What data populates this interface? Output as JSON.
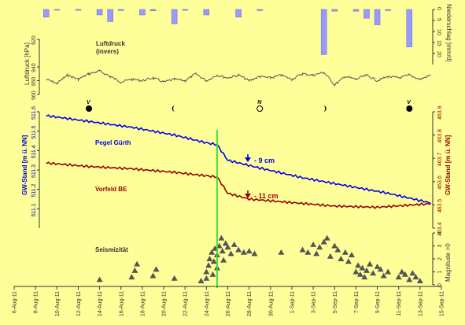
{
  "chart_data": {
    "type": "line",
    "x_axis": {
      "tick_labels": [
        "6-Aug-11",
        "8-Aug-11",
        "10-Aug-11",
        "12-Aug-11",
        "14-Aug-11",
        "16-Aug-11",
        "18-Aug-11",
        "20-Aug-11",
        "22-Aug-11",
        "24-Aug-11",
        "26-Aug-11",
        "28-Aug-11",
        "30-Aug-11",
        "1-Sep-11",
        "3-Sep-11",
        "5-Sep-11",
        "7-Sep-11",
        "9-Sep-11",
        "11-Sep-11",
        "13-Sep-11",
        "15-Sep-11"
      ],
      "range": [
        "2011-08-06",
        "2011-09-15"
      ]
    },
    "event_line_date": "2011-08-25",
    "precipitation": {
      "ylabel": "Niederschlag [mm/d]",
      "ylim": [
        0,
        25
      ],
      "inverted": true,
      "ticks": [
        0,
        5,
        10,
        15,
        20
      ],
      "color": "#9999ff",
      "bars": [
        {
          "date": "2011-08-09",
          "value": 3.5
        },
        {
          "date": "2011-08-10",
          "value": 0.3
        },
        {
          "date": "2011-08-12",
          "value": 0.4
        },
        {
          "date": "2011-08-14",
          "value": 2.5
        },
        {
          "date": "2011-08-15",
          "value": 5.5
        },
        {
          "date": "2011-08-16",
          "value": 0.5
        },
        {
          "date": "2011-08-18",
          "value": 2.5
        },
        {
          "date": "2011-08-19",
          "value": 0.6
        },
        {
          "date": "2011-08-21",
          "value": 6.5
        },
        {
          "date": "2011-08-22",
          "value": 0.4
        },
        {
          "date": "2011-08-24",
          "value": 2.5
        },
        {
          "date": "2011-08-27",
          "value": 3.5
        },
        {
          "date": "2011-08-29",
          "value": 0.5
        },
        {
          "date": "2011-09-04",
          "value": 20.5
        },
        {
          "date": "2011-09-05",
          "value": 0.8
        },
        {
          "date": "2011-09-07",
          "value": 0.8
        },
        {
          "date": "2011-09-08",
          "value": 4.0
        },
        {
          "date": "2011-09-09",
          "value": 7.0
        },
        {
          "date": "2011-09-10",
          "value": 0.5
        },
        {
          "date": "2011-09-12",
          "value": 17.0
        }
      ]
    },
    "pressure": {
      "label": [
        "Luftdruck",
        "(invers)"
      ],
      "ylabel": "Luftdruck [hPa]",
      "ylim": [
        920,
        960
      ],
      "inverted": true,
      "ticks": [
        920,
        940,
        950,
        960
      ],
      "color": "#555555",
      "points": [
        {
          "date": "2011-08-09",
          "value": 949
        },
        {
          "date": "2011-08-10",
          "value": 952
        },
        {
          "date": "2011-08-11",
          "value": 946
        },
        {
          "date": "2011-08-12",
          "value": 949
        },
        {
          "date": "2011-08-13",
          "value": 945
        },
        {
          "date": "2011-08-14",
          "value": 943
        },
        {
          "date": "2011-08-15",
          "value": 947
        },
        {
          "date": "2011-08-16",
          "value": 951
        },
        {
          "date": "2011-08-17",
          "value": 949
        },
        {
          "date": "2011-08-18",
          "value": 950
        },
        {
          "date": "2011-08-19",
          "value": 948
        },
        {
          "date": "2011-08-20",
          "value": 951
        },
        {
          "date": "2011-08-21",
          "value": 949
        },
        {
          "date": "2011-08-22",
          "value": 950
        },
        {
          "date": "2011-08-23",
          "value": 945
        },
        {
          "date": "2011-08-24",
          "value": 950
        },
        {
          "date": "2011-08-25",
          "value": 946
        },
        {
          "date": "2011-08-26",
          "value": 948
        },
        {
          "date": "2011-08-27",
          "value": 946
        },
        {
          "date": "2011-08-28",
          "value": 950
        },
        {
          "date": "2011-08-29",
          "value": 947
        },
        {
          "date": "2011-08-30",
          "value": 948
        },
        {
          "date": "2011-08-31",
          "value": 946
        },
        {
          "date": "2011-09-01",
          "value": 949
        },
        {
          "date": "2011-09-02",
          "value": 945
        },
        {
          "date": "2011-09-03",
          "value": 946
        },
        {
          "date": "2011-09-04",
          "value": 944
        },
        {
          "date": "2011-09-05",
          "value": 953
        },
        {
          "date": "2011-09-06",
          "value": 947
        },
        {
          "date": "2011-09-07",
          "value": 949
        },
        {
          "date": "2011-09-08",
          "value": 946
        },
        {
          "date": "2011-09-09",
          "value": 950
        },
        {
          "date": "2011-09-10",
          "value": 947
        },
        {
          "date": "2011-09-11",
          "value": 948
        },
        {
          "date": "2011-09-12",
          "value": 946
        },
        {
          "date": "2011-09-13",
          "value": 949
        },
        {
          "date": "2011-09-14",
          "value": 946
        }
      ]
    },
    "moon_phases": [
      {
        "date": "2011-08-13",
        "symbol": "full",
        "letter": "V"
      },
      {
        "date": "2011-08-21",
        "symbol": "last-quarter",
        "letter": ""
      },
      {
        "date": "2011-08-29",
        "symbol": "new",
        "letter": "N"
      },
      {
        "date": "2011-09-04",
        "symbol": "first-quarter",
        "letter": ""
      },
      {
        "date": "2011-09-12",
        "symbol": "full",
        "letter": "V"
      }
    ],
    "groundwater": {
      "left_axis": {
        "label": "GW-Stand  [m ü. NN]",
        "ylim": [
          511.0,
          511.6
        ],
        "ticks": [
          511.1,
          511.2,
          511.3,
          511.4,
          511.5,
          511.6
        ],
        "color": "#0000cc"
      },
      "right_axis": {
        "label": "GW-Stand  [m ü. NN]",
        "ylim": [
          463.4,
          463.9
        ],
        "ticks": [
          463.4,
          463.5,
          463.6,
          463.7,
          463.8,
          463.9
        ],
        "color": "#990000"
      },
      "series": [
        {
          "name": "Pegel Gürth",
          "axis": "left",
          "color": "#0000ee",
          "annotation": "- 9 cm",
          "points": [
            {
              "date": "2011-08-09",
              "value": 511.58
            },
            {
              "date": "2011-08-13",
              "value": 511.55
            },
            {
              "date": "2011-08-17",
              "value": 511.52
            },
            {
              "date": "2011-08-21",
              "value": 511.48
            },
            {
              "date": "2011-08-24",
              "value": 511.44
            },
            {
              "date": "2011-08-25",
              "value": 511.43
            },
            {
              "date": "2011-08-26",
              "value": 511.35
            },
            {
              "date": "2011-08-29",
              "value": 511.31
            },
            {
              "date": "2011-09-02",
              "value": 511.26
            },
            {
              "date": "2011-09-06",
              "value": 511.22
            },
            {
              "date": "2011-09-10",
              "value": 511.18
            },
            {
              "date": "2011-09-14",
              "value": 511.13
            }
          ]
        },
        {
          "name": "Vorfeld BE",
          "axis": "right",
          "color": "#990000",
          "annotation": "- 11 cm",
          "points": [
            {
              "date": "2011-08-09",
              "value": 463.68
            },
            {
              "date": "2011-08-13",
              "value": 463.665
            },
            {
              "date": "2011-08-17",
              "value": 463.655
            },
            {
              "date": "2011-08-21",
              "value": 463.64
            },
            {
              "date": "2011-08-24",
              "value": 463.625
            },
            {
              "date": "2011-08-25",
              "value": 463.62
            },
            {
              "date": "2011-08-26",
              "value": 463.55
            },
            {
              "date": "2011-08-28",
              "value": 463.525
            },
            {
              "date": "2011-09-01",
              "value": 463.51
            },
            {
              "date": "2011-09-05",
              "value": 463.495
            },
            {
              "date": "2011-09-09",
              "value": 463.49
            },
            {
              "date": "2011-09-14",
              "value": 463.505
            }
          ]
        }
      ]
    },
    "seismicity": {
      "label": "Seismizität",
      "ylabel": "Magnitude >0",
      "ylim": [
        0,
        4
      ],
      "ticks": [
        0,
        1,
        2,
        3,
        4
      ],
      "color": "#555555",
      "events": [
        {
          "date": "2011-08-14",
          "mag": 0.4
        },
        {
          "date": "2011-08-17",
          "mag": 0.6
        },
        {
          "date": "2011-08-17.3",
          "mag": 1.1
        },
        {
          "date": "2011-08-17.5",
          "mag": 1.6
        },
        {
          "date": "2011-08-19",
          "mag": 0.7
        },
        {
          "date": "2011-08-19.3",
          "mag": 1.2
        },
        {
          "date": "2011-08-21",
          "mag": 0.5
        },
        {
          "date": "2011-08-23.5",
          "mag": 0.3
        },
        {
          "date": "2011-08-24",
          "mag": 0.5
        },
        {
          "date": "2011-08-24",
          "mag": 1.0
        },
        {
          "date": "2011-08-24.2",
          "mag": 1.5
        },
        {
          "date": "2011-08-24.3",
          "mag": 2.0
        },
        {
          "date": "2011-08-24.5",
          "mag": 2.5
        },
        {
          "date": "2011-08-24.6",
          "mag": 0.8
        },
        {
          "date": "2011-08-24.7",
          "mag": 1.8
        },
        {
          "date": "2011-08-24.8",
          "mag": 2.8
        },
        {
          "date": "2011-08-25",
          "mag": 1.3
        },
        {
          "date": "2011-08-25",
          "mag": 2.3
        },
        {
          "date": "2011-08-25.2",
          "mag": 3.0
        },
        {
          "date": "2011-08-25.4",
          "mag": 3.6
        },
        {
          "date": "2011-08-25.5",
          "mag": 2.6
        },
        {
          "date": "2011-08-25.6",
          "mag": 1.9
        },
        {
          "date": "2011-08-25.8",
          "mag": 3.2
        },
        {
          "date": "2011-08-26",
          "mag": 2.9
        },
        {
          "date": "2011-08-26.3",
          "mag": 2.4
        },
        {
          "date": "2011-08-26.6",
          "mag": 3.1
        },
        {
          "date": "2011-08-27",
          "mag": 2.7
        },
        {
          "date": "2011-08-27.5",
          "mag": 2.5
        },
        {
          "date": "2011-08-28",
          "mag": 2.6
        },
        {
          "date": "2011-08-28.5",
          "mag": 2.4
        },
        {
          "date": "2011-08-31",
          "mag": 2.5
        },
        {
          "date": "2011-09-02",
          "mag": 2.7
        },
        {
          "date": "2011-09-02.5",
          "mag": 2.5
        },
        {
          "date": "2011-09-03",
          "mag": 3.1
        },
        {
          "date": "2011-09-03.3",
          "mag": 2.4
        },
        {
          "date": "2011-09-03.6",
          "mag": 2.9
        },
        {
          "date": "2011-09-04",
          "mag": 3.3
        },
        {
          "date": "2011-09-04.3",
          "mag": 3.6
        },
        {
          "date": "2011-09-04.6",
          "mag": 2.2
        },
        {
          "date": "2011-09-05",
          "mag": 3.0
        },
        {
          "date": "2011-09-05.3",
          "mag": 2.7
        },
        {
          "date": "2011-09-05.6",
          "mag": 2.0
        },
        {
          "date": "2011-09-06",
          "mag": 2.5
        },
        {
          "date": "2011-09-06.3",
          "mag": 1.8
        },
        {
          "date": "2011-09-06.6",
          "mag": 2.3
        },
        {
          "date": "2011-09-07",
          "mag": 1.0
        },
        {
          "date": "2011-09-07.2",
          "mag": 1.5
        },
        {
          "date": "2011-09-07.4",
          "mag": 0.8
        },
        {
          "date": "2011-09-07.6",
          "mag": 1.3
        },
        {
          "date": "2011-09-07.8",
          "mag": 0.6
        },
        {
          "date": "2011-09-08",
          "mag": 1.1
        },
        {
          "date": "2011-09-08.3",
          "mag": 1.6
        },
        {
          "date": "2011-09-08.6",
          "mag": 0.9
        },
        {
          "date": "2011-09-09",
          "mag": 1.4
        },
        {
          "date": "2011-09-09.3",
          "mag": 1.2
        },
        {
          "date": "2011-09-09.6",
          "mag": 0.7
        },
        {
          "date": "2011-09-10",
          "mag": 1.0
        },
        {
          "date": "2011-09-11",
          "mag": 0.6
        },
        {
          "date": "2011-09-11.3",
          "mag": 1.0
        },
        {
          "date": "2011-09-11.6",
          "mag": 0.8
        },
        {
          "date": "2011-09-12",
          "mag": 0.4
        },
        {
          "date": "2011-09-12.3",
          "mag": 0.9
        },
        {
          "date": "2011-09-12.6",
          "mag": 0.6
        },
        {
          "date": "2011-09-13",
          "mag": 0.3
        }
      ]
    }
  }
}
